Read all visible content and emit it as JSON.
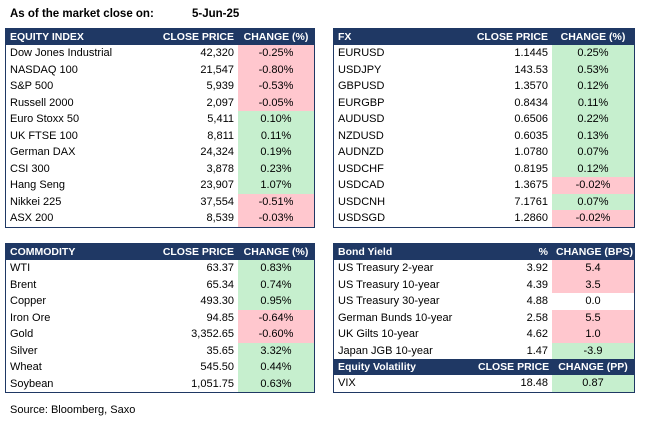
{
  "header": {
    "label": "As of the market close on:",
    "date": "5-Jun-25"
  },
  "equity": {
    "headers": [
      "EQUITY INDEX",
      "CLOSE PRICE",
      "CHANGE (%)"
    ],
    "rows": [
      {
        "name": "Dow Jones Industrial",
        "price": "42,320",
        "change": "-0.25%",
        "sign": "neg"
      },
      {
        "name": "NASDAQ 100",
        "price": "21,547",
        "change": "-0.80%",
        "sign": "neg"
      },
      {
        "name": "S&P 500",
        "price": "5,939",
        "change": "-0.53%",
        "sign": "neg"
      },
      {
        "name": "Russell 2000",
        "price": "2,097",
        "change": "-0.05%",
        "sign": "neg"
      },
      {
        "name": "Euro Stoxx 50",
        "price": "5,411",
        "change": "0.10%",
        "sign": "pos"
      },
      {
        "name": "UK FTSE 100",
        "price": "8,811",
        "change": "0.11%",
        "sign": "pos"
      },
      {
        "name": "German DAX",
        "price": "24,324",
        "change": "0.19%",
        "sign": "pos"
      },
      {
        "name": "CSI 300",
        "price": "3,878",
        "change": "0.23%",
        "sign": "pos"
      },
      {
        "name": "Hang Seng",
        "price": "23,907",
        "change": "1.07%",
        "sign": "pos"
      },
      {
        "name": "Nikkei 225",
        "price": "37,554",
        "change": "-0.51%",
        "sign": "neg"
      },
      {
        "name": "ASX 200",
        "price": "8,539",
        "change": "-0.03%",
        "sign": "neg"
      }
    ]
  },
  "fx": {
    "headers": [
      "FX",
      "CLOSE PRICE",
      "CHANGE (%)"
    ],
    "rows": [
      {
        "name": "EURUSD",
        "price": "1.1445",
        "change": "0.25%",
        "sign": "pos"
      },
      {
        "name": "USDJPY",
        "price": "143.53",
        "change": "0.53%",
        "sign": "pos"
      },
      {
        "name": "GBPUSD",
        "price": "1.3570",
        "change": "0.12%",
        "sign": "pos"
      },
      {
        "name": "EURGBP",
        "price": "0.8434",
        "change": "0.11%",
        "sign": "pos"
      },
      {
        "name": "AUDUSD",
        "price": "0.6506",
        "change": "0.22%",
        "sign": "pos"
      },
      {
        "name": "NZDUSD",
        "price": "0.6035",
        "change": "0.13%",
        "sign": "pos"
      },
      {
        "name": "AUDNZD",
        "price": "1.0780",
        "change": "0.07%",
        "sign": "pos"
      },
      {
        "name": "USDCHF",
        "price": "0.8195",
        "change": "0.12%",
        "sign": "pos"
      },
      {
        "name": "USDCAD",
        "price": "1.3675",
        "change": "-0.02%",
        "sign": "neg"
      },
      {
        "name": "USDCNH",
        "price": "7.1761",
        "change": "0.07%",
        "sign": "pos"
      },
      {
        "name": "USDSGD",
        "price": "1.2860",
        "change": "-0.02%",
        "sign": "neg"
      }
    ]
  },
  "commodity": {
    "headers": [
      "COMMODITY",
      "CLOSE PRICE",
      "CHANGE (%)"
    ],
    "rows": [
      {
        "name": "WTI",
        "price": "63.37",
        "change": "0.83%",
        "sign": "pos"
      },
      {
        "name": "Brent",
        "price": "65.34",
        "change": "0.74%",
        "sign": "pos"
      },
      {
        "name": "Copper",
        "price": "493.30",
        "change": "0.95%",
        "sign": "pos"
      },
      {
        "name": "Iron Ore",
        "price": "94.85",
        "change": "-0.64%",
        "sign": "neg"
      },
      {
        "name": "Gold",
        "price": "3,352.65",
        "change": "-0.60%",
        "sign": "neg"
      },
      {
        "name": "Silver",
        "price": "35.65",
        "change": "3.32%",
        "sign": "pos"
      },
      {
        "name": "Wheat",
        "price": "545.50",
        "change": "0.44%",
        "sign": "pos"
      },
      {
        "name": "Soybean",
        "price": "1,051.75",
        "change": "0.63%",
        "sign": "pos"
      }
    ]
  },
  "bonds": {
    "headers": [
      "Bond Yield",
      "%",
      "CHANGE (BPS)"
    ],
    "rows": [
      {
        "name": "US Treasury 2-year",
        "price": "3.92",
        "change": "5.4",
        "sign": "neg"
      },
      {
        "name": "US Treasury 10-year",
        "price": "4.39",
        "change": "3.5",
        "sign": "neg"
      },
      {
        "name": "US Treasury 30-year",
        "price": "4.88",
        "change": "0.0",
        "sign": "zero"
      },
      {
        "name": "German Bunds 10-year",
        "price": "2.58",
        "change": "5.5",
        "sign": "neg"
      },
      {
        "name": "UK Gilts 10-year",
        "price": "4.62",
        "change": "1.0",
        "sign": "neg"
      },
      {
        "name": "Japan JGB 10-year",
        "price": "1.47",
        "change": "-3.9",
        "sign": "pos"
      }
    ]
  },
  "volatility": {
    "headers": [
      "Equity Volatility",
      "CLOSE PRICE",
      "CHANGE (PP)"
    ],
    "rows": [
      {
        "name": "VIX",
        "price": "18.48",
        "change": "0.87",
        "sign": "pos"
      }
    ]
  },
  "footer": {
    "source": "Source: Bloomberg, Saxo"
  },
  "colors": {
    "header_bg": "#1f3864",
    "positive_bg": "#c6efce",
    "negative_bg": "#ffc7ce"
  }
}
